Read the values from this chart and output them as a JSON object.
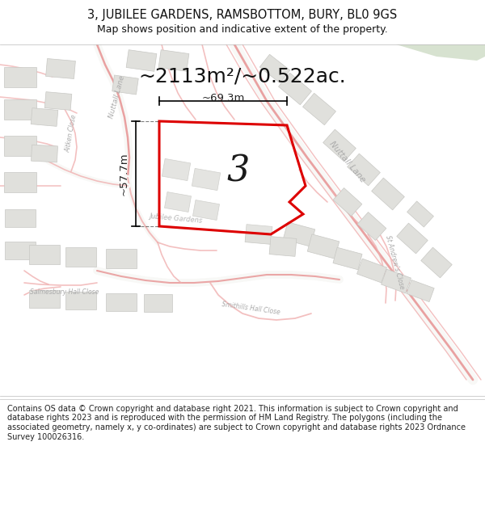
{
  "title_line1": "3, JUBILEE GARDENS, RAMSBOTTOM, BURY, BL0 9GS",
  "title_line2": "Map shows position and indicative extent of the property.",
  "area_text": "~2113m²/~0.522ac.",
  "label_number": "3",
  "dim_width": "~69.3m",
  "dim_height": "~57.7m",
  "footer_text": "Contains OS data © Crown copyright and database right 2021. This information is subject to Crown copyright and database rights 2023 and is reproduced with the permission of HM Land Registry. The polygons (including the associated geometry, namely x, y co-ordinates) are subject to Crown copyright and database rights 2023 Ordnance Survey 100026316.",
  "map_bg": "#f8f8f6",
  "road_color": "#f0b0b0",
  "road_color_main": "#e89898",
  "highlight_color": "#dd0000",
  "green_color": "#d0ddc8",
  "building_color": "#e0e0dc",
  "building_edge": "#c8c8c4",
  "road_label_color": "#aaaaaa",
  "title_color": "#111111",
  "footer_color": "#222222",
  "dim_color": "#222222"
}
